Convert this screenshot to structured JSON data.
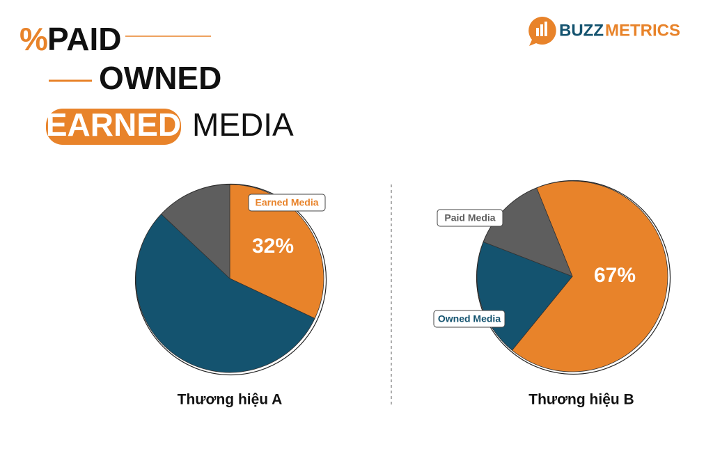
{
  "header": {
    "percent": "%",
    "paid": "PAID",
    "owned": "OWNED",
    "earned": "EARNED",
    "media": "MEDIA",
    "logo_buzz": "BUZZ",
    "logo_metrics": "METRICS"
  },
  "chart_data": [
    {
      "type": "pie",
      "title": "Thương hiệu A",
      "categories": [
        "Earned Media",
        null,
        null
      ],
      "values": [
        32,
        55,
        13
      ],
      "value_labels": [
        "32%",
        null,
        null
      ],
      "colors": [
        "#e8832a",
        "#14536f",
        "#5e5e5e"
      ]
    },
    {
      "type": "pie",
      "title": "Thương hiệu B",
      "categories": [
        null,
        "Owned Media",
        "Paid Media"
      ],
      "values": [
        67,
        20,
        13
      ],
      "value_labels": [
        "67%",
        null,
        null
      ],
      "colors": [
        "#e8832a",
        "#14536f",
        "#5e5e5e"
      ]
    }
  ]
}
